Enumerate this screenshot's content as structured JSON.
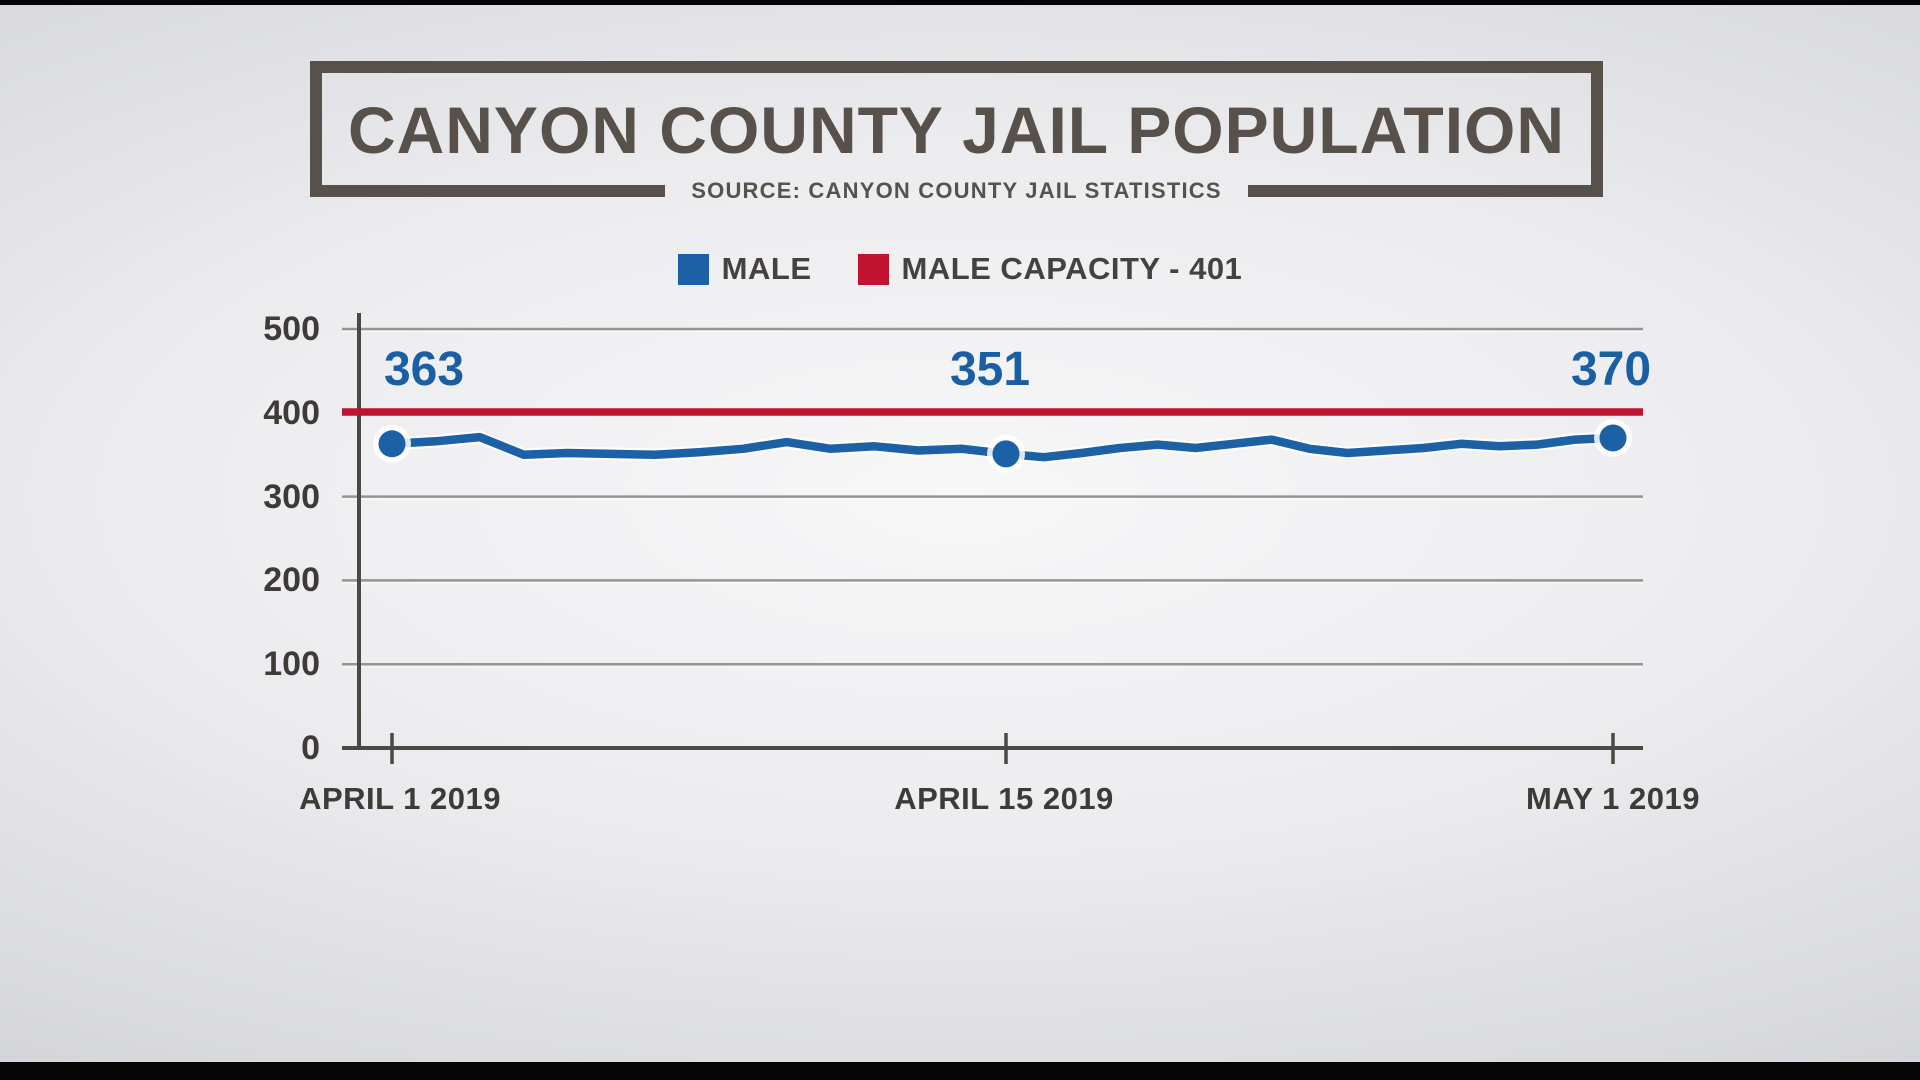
{
  "header": {
    "title": "CANYON COUNTY JAIL POPULATION",
    "source": "SOURCE: CANYON COUNTY JAIL STATISTICS"
  },
  "legend": {
    "items": [
      {
        "label": "MALE",
        "color": "#1c61a5"
      },
      {
        "label": "MALE CAPACITY - 401",
        "color": "#c1122f"
      }
    ]
  },
  "colors": {
    "male_line": "#1c61a5",
    "capacity_line": "#c1122f",
    "title": "#58504a",
    "axis": "#4c4844",
    "grid": "#949494",
    "axis_text": "#3e3a37",
    "point_label_text": "#1a5fa4",
    "background_center": "#f7f7f8",
    "background_edge": "#c2c3ca"
  },
  "chart_data": {
    "type": "line",
    "title": "CANYON COUNTY JAIL POPULATION",
    "source": "SOURCE: CANYON COUNTY JAIL STATISTICS",
    "xlabel": "",
    "ylabel": "",
    "ylim": [
      0,
      500
    ],
    "grid": true,
    "legend_position": "top",
    "y_ticks": [
      500,
      400,
      300,
      200,
      100,
      0
    ],
    "x_unit": "days from April 1 2019 (daily points)",
    "x_ticks": [
      {
        "label": "APRIL 1 2019",
        "day": 0
      },
      {
        "label": "APRIL 15 2019",
        "day": 14
      },
      {
        "label": "MAY 1 2019",
        "day": 30
      }
    ],
    "series": [
      {
        "name": "MALE",
        "type": "line",
        "color": "#1c61a5",
        "values": [
          363,
          366,
          371,
          350,
          352,
          351,
          350,
          353,
          357,
          365,
          357,
          360,
          355,
          357,
          351,
          347,
          352,
          358,
          362,
          358,
          363,
          368,
          357,
          352,
          355,
          358,
          363,
          360,
          362,
          368,
          370
        ]
      },
      {
        "name": "MALE CAPACITY - 401",
        "type": "hline",
        "color": "#c1122f",
        "value": 401
      }
    ],
    "labeled_points": [
      {
        "date": "APRIL 1 2019",
        "day": 0,
        "value": 363
      },
      {
        "date": "APRIL 15 2019",
        "day": 14,
        "value": 351
      },
      {
        "date": "MAY 1 2019",
        "day": 30,
        "value": 370
      }
    ]
  }
}
